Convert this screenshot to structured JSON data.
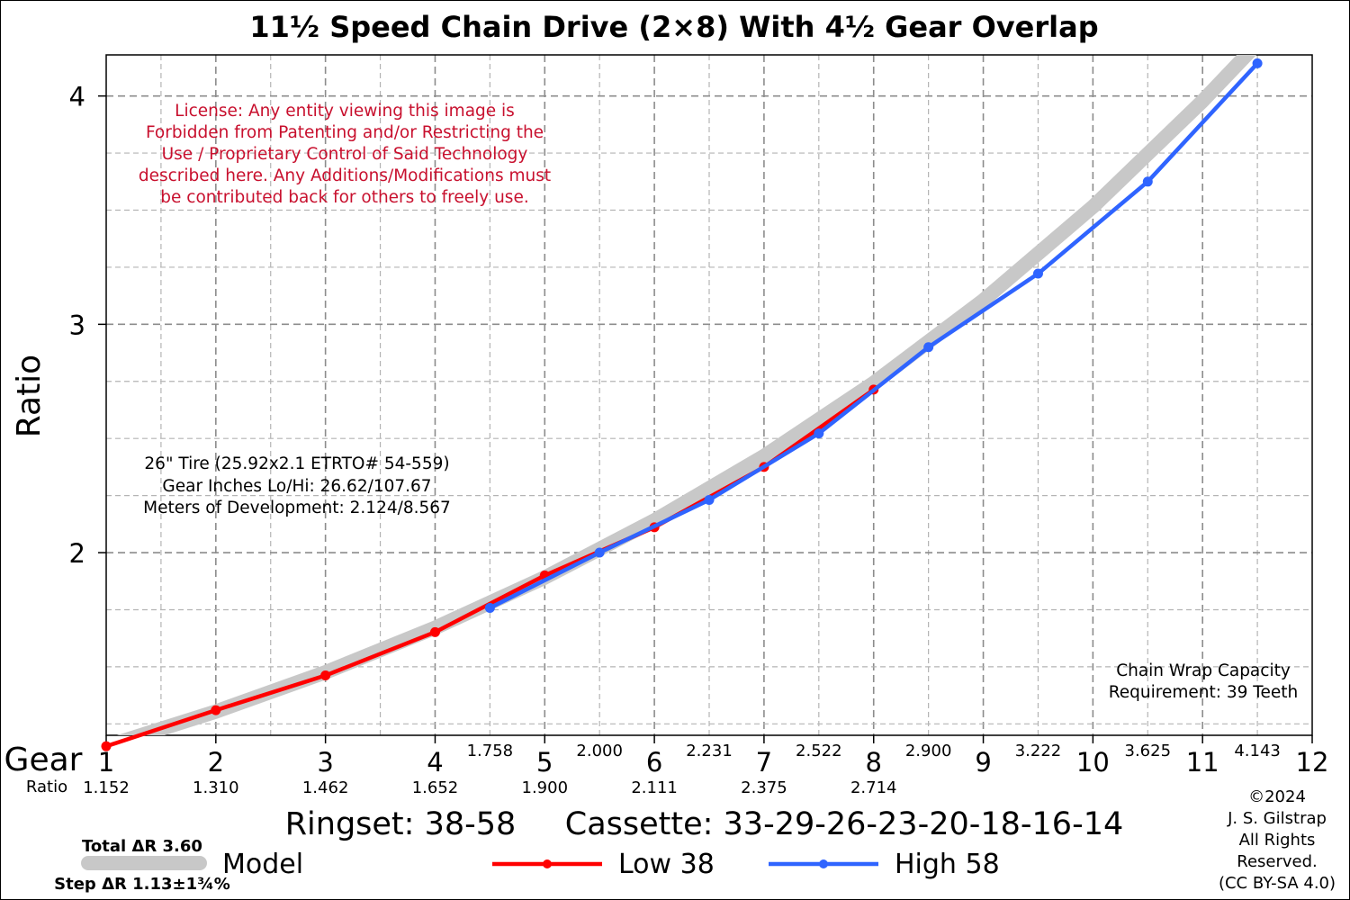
{
  "chart_data": {
    "type": "line",
    "title": "11½ Speed Chain Drive (2×8) With 4½ Gear Overlap",
    "ylabel": "Ratio",
    "xlabel": "Gear",
    "xlim": [
      1,
      12
    ],
    "ylim": [
      1.2,
      4.18
    ],
    "x_ticks": [
      "1",
      "2",
      "3",
      "4",
      "5",
      "6",
      "7",
      "8",
      "9",
      "10",
      "11",
      "12"
    ],
    "y_ticks": [
      "2",
      "3",
      "4"
    ],
    "grid": true,
    "series": [
      {
        "name": "Low 38",
        "color": "#ff0000",
        "x": [
          1,
          2,
          3,
          4,
          5,
          6,
          7,
          8
        ],
        "y": [
          1.152,
          1.31,
          1.462,
          1.652,
          1.9,
          2.111,
          2.375,
          2.714
        ]
      },
      {
        "name": "High 58",
        "color": "#2f64ff",
        "x": [
          4.5,
          5.5,
          6.5,
          7.5,
          8.5,
          9.5,
          10.5,
          11.5
        ],
        "y": [
          1.758,
          2.0,
          2.231,
          2.522,
          2.9,
          3.222,
          3.625,
          4.143
        ]
      },
      {
        "name": "Model",
        "color": "#c8c8c8",
        "x": [
          1,
          2,
          3,
          4,
          5,
          6,
          7,
          8,
          9,
          10,
          11,
          11.5
        ],
        "y": [
          1.152,
          1.304,
          1.476,
          1.671,
          1.891,
          2.141,
          2.423,
          2.743,
          3.105,
          3.515,
          3.978,
          4.23
        ]
      }
    ],
    "low_ratio_labels": [
      "1.152",
      "1.310",
      "1.462",
      "1.652",
      "1.900",
      "2.111",
      "2.375",
      "2.714"
    ],
    "high_ratio_labels": [
      "1.758",
      "2.000",
      "2.231",
      "2.522",
      "2.900",
      "3.222",
      "3.625",
      "4.143"
    ],
    "ratio_row_label": "Ratio",
    "license_note": [
      "License: Any entity viewing this image is",
      "Forbidden from Patenting and/or Restricting the",
      "Use / Proprietary Control of Said Technology",
      "described here. Any Additions/Modifications must",
      "be contributed back for others to freely use."
    ],
    "tire_info": [
      "26\" Tire (25.92x2.1 ETRTO# 54-559)",
      "Gear Inches Lo/Hi: 26.62/107.67",
      "Meters of Development: 2.124/8.567"
    ],
    "chain_wrap": [
      "Chain Wrap Capacity",
      "Requirement: 39 Teeth"
    ],
    "ringset_label": "Ringset: 38-58",
    "cassette_label": "Cassette: 33-29-26-23-20-18-16-14",
    "total_delta": "Total ΔR 3.60",
    "step_delta": "Step ΔR 1.13±1¾%",
    "copyright": [
      "©2024",
      "J. S. Gilstrap",
      "All Rights",
      "Reserved.",
      "(CC BY-SA 4.0)"
    ],
    "legend": {
      "model": "Model",
      "low": "Low 38",
      "high": "High 58"
    }
  }
}
